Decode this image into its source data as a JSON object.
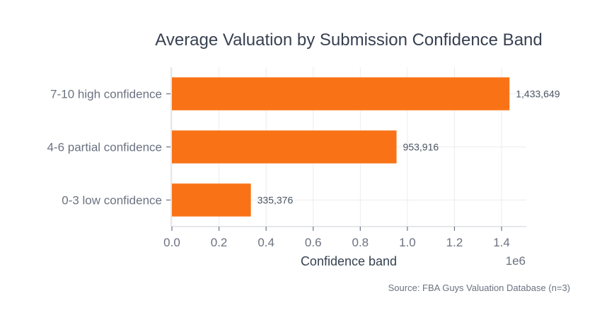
{
  "chart_data": {
    "type": "bar",
    "orientation": "horizontal",
    "title": "Average Valuation by Submission Confidence Band",
    "categories": [
      "7-10 high confidence",
      "4-6 partial confidence",
      "0-3 low confidence"
    ],
    "values": [
      1433649,
      953916,
      335376
    ],
    "data_labels": [
      "1,433,649",
      "953,916",
      "335,376"
    ],
    "xlabel": "Confidence band",
    "x_scale_label": "1e6",
    "xticks": [
      0,
      200000,
      400000,
      600000,
      800000,
      1000000,
      1200000,
      1400000
    ],
    "xtick_labels": [
      "0.0",
      "0.2",
      "0.4",
      "0.6",
      "0.8",
      "1.0",
      "1.2",
      "1.4"
    ],
    "xlim": [
      0,
      1505000
    ],
    "grid": true,
    "bar_color": "#f97316",
    "source": "Source: FBA Guys Valuation Database (n=3)"
  }
}
